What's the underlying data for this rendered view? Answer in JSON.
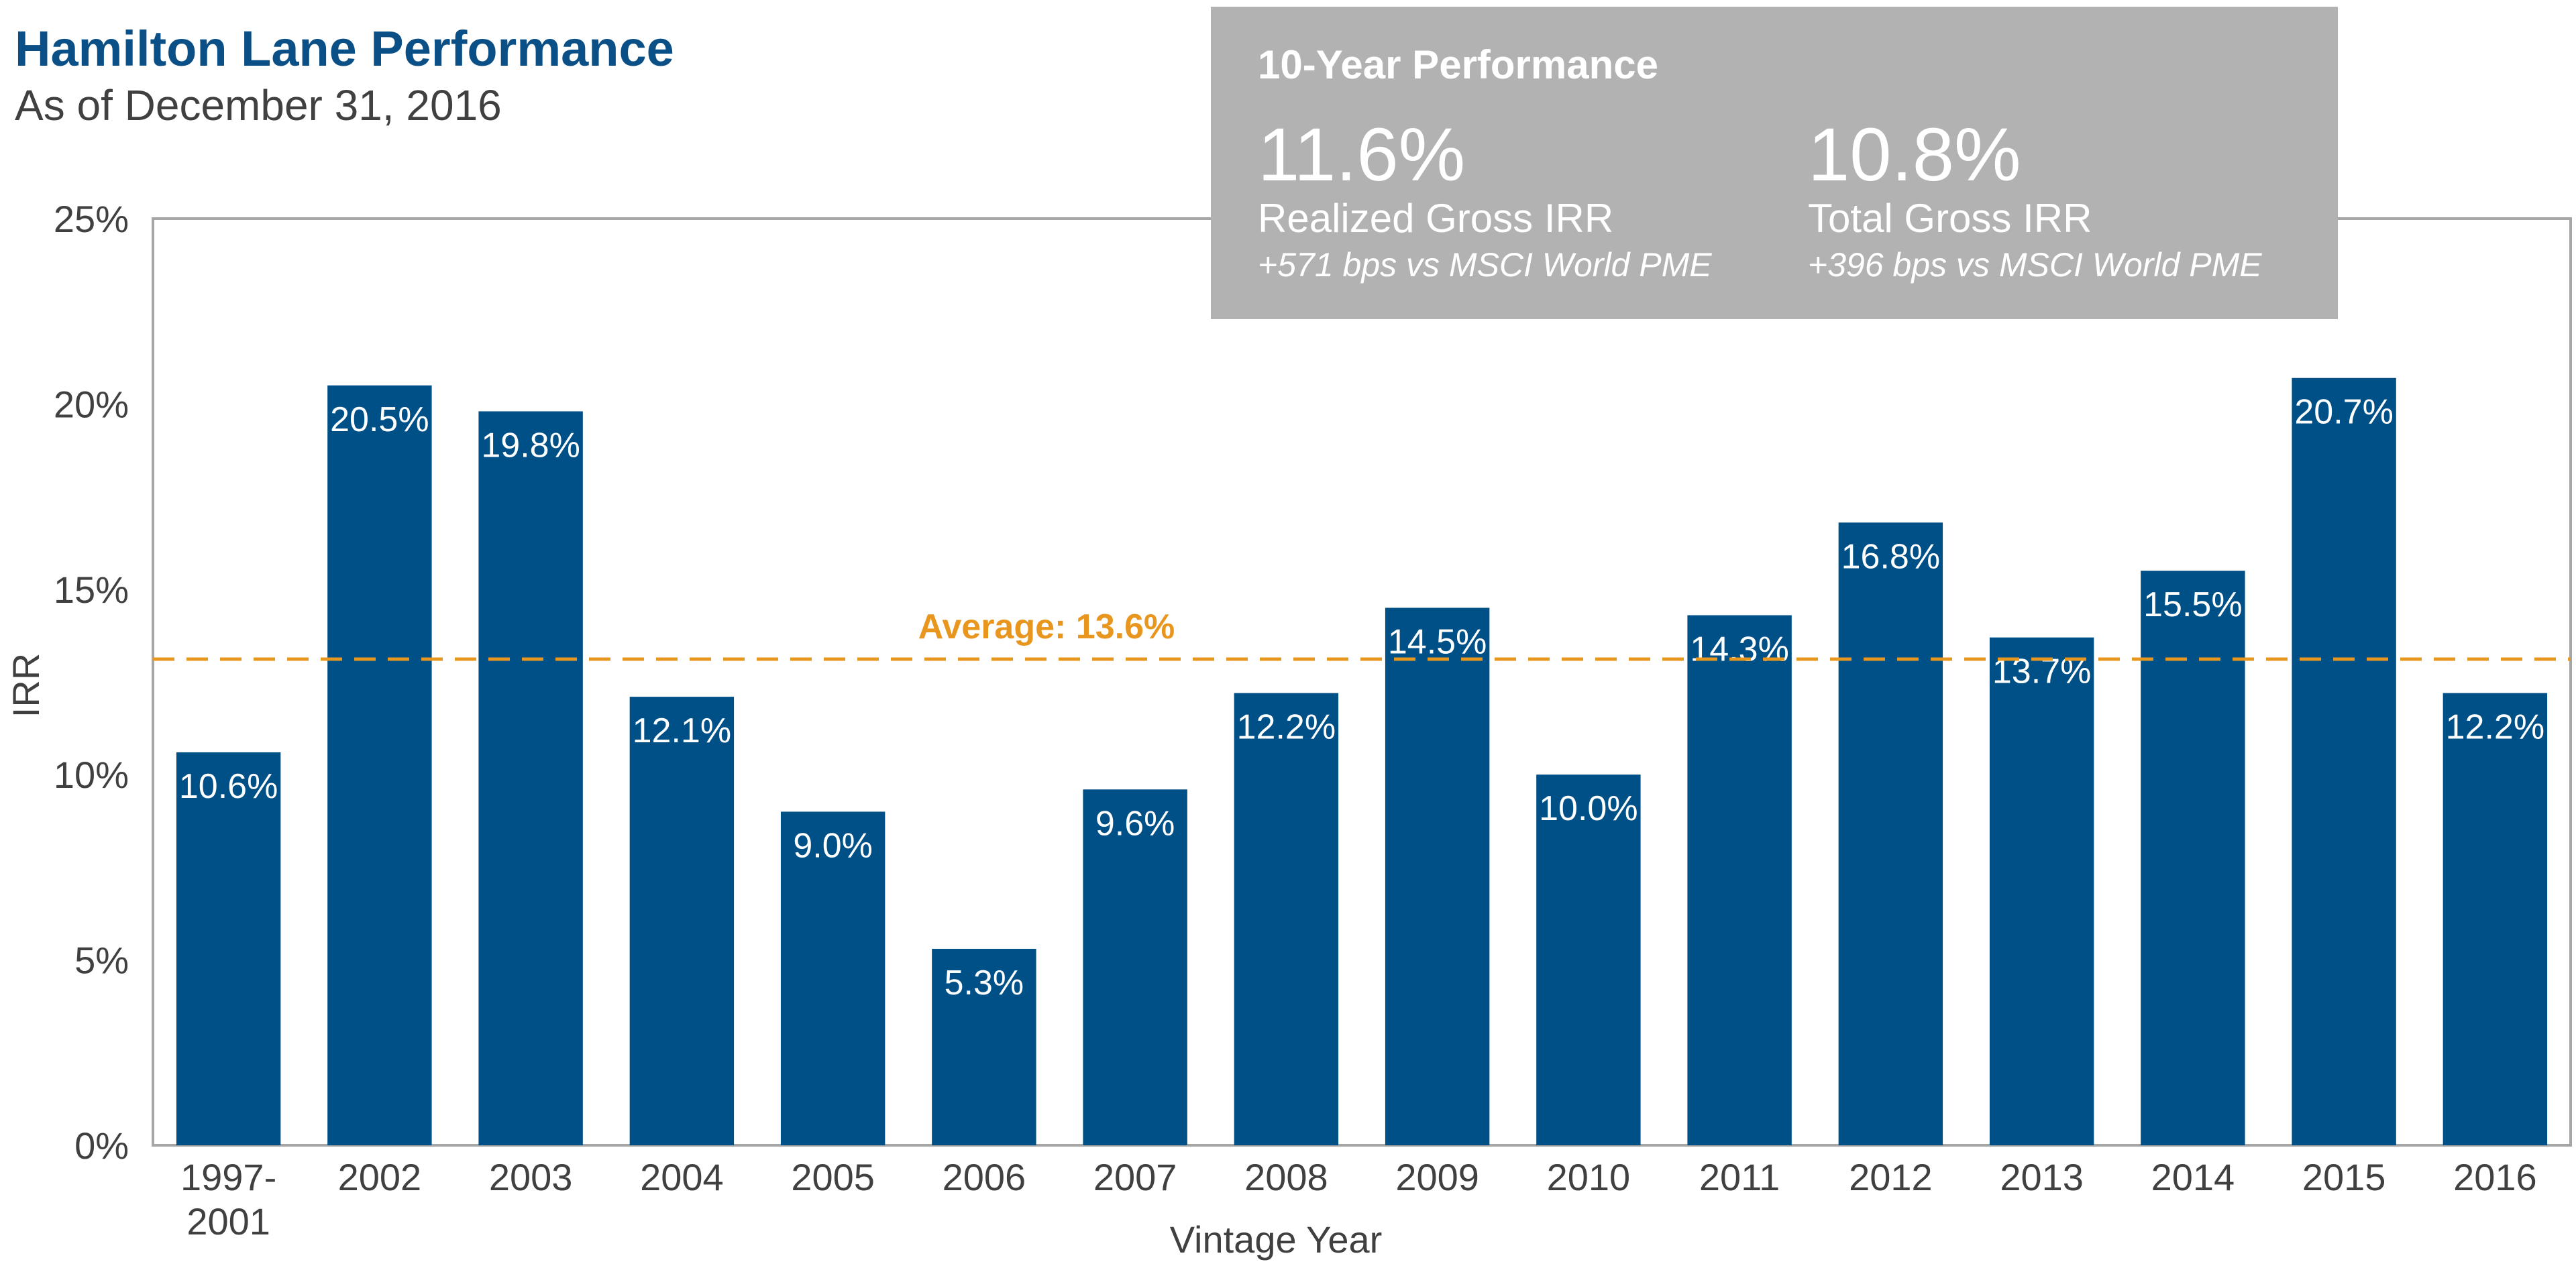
{
  "header": {
    "title": "Hamilton Lane Performance",
    "subtitle": "As of December 31, 2016"
  },
  "callout": {
    "heading": "10-Year Performance",
    "metrics": [
      {
        "value": "11.6%",
        "label": "Realized Gross IRR",
        "note": "+571 bps vs MSCI World PME"
      },
      {
        "value": "10.8%",
        "label": "Total Gross IRR",
        "note": "+396 bps vs MSCI World PME"
      }
    ]
  },
  "colors": {
    "bar": "#005088",
    "average": "#e8961e",
    "axis": "#a6a6a6",
    "callout_bg": "#b2b2b2",
    "title": "#0a4f85",
    "text": "#404040"
  },
  "chart_data": {
    "type": "bar",
    "categories": [
      "1997-\n2001",
      "2002",
      "2003",
      "2004",
      "2005",
      "2006",
      "2007",
      "2008",
      "2009",
      "2010",
      "2011",
      "2012",
      "2013",
      "2014",
      "2015",
      "2016"
    ],
    "values": [
      10.6,
      20.5,
      19.8,
      12.1,
      9.0,
      5.3,
      9.6,
      12.2,
      14.5,
      10.0,
      14.3,
      16.8,
      13.7,
      15.5,
      20.7,
      12.2
    ],
    "data_labels": [
      "10.6%",
      "20.5%",
      "19.8%",
      "12.1%",
      "9.0%",
      "5.3%",
      "9.6%",
      "12.2%",
      "14.5%",
      "10.0%",
      "14.3%",
      "16.8%",
      "13.7%",
      "15.5%",
      "20.7%",
      "12.2%"
    ],
    "xlabel": "Vintage Year",
    "ylabel": "IRR",
    "ylim": [
      0,
      25
    ],
    "yticks": [
      0,
      5,
      10,
      15,
      20,
      25
    ],
    "ytick_labels": [
      "0%",
      "5%",
      "10%",
      "15%",
      "20%",
      "25%"
    ],
    "average": {
      "value": 13.6,
      "label": "Average: 13.6%"
    },
    "grid": false
  }
}
